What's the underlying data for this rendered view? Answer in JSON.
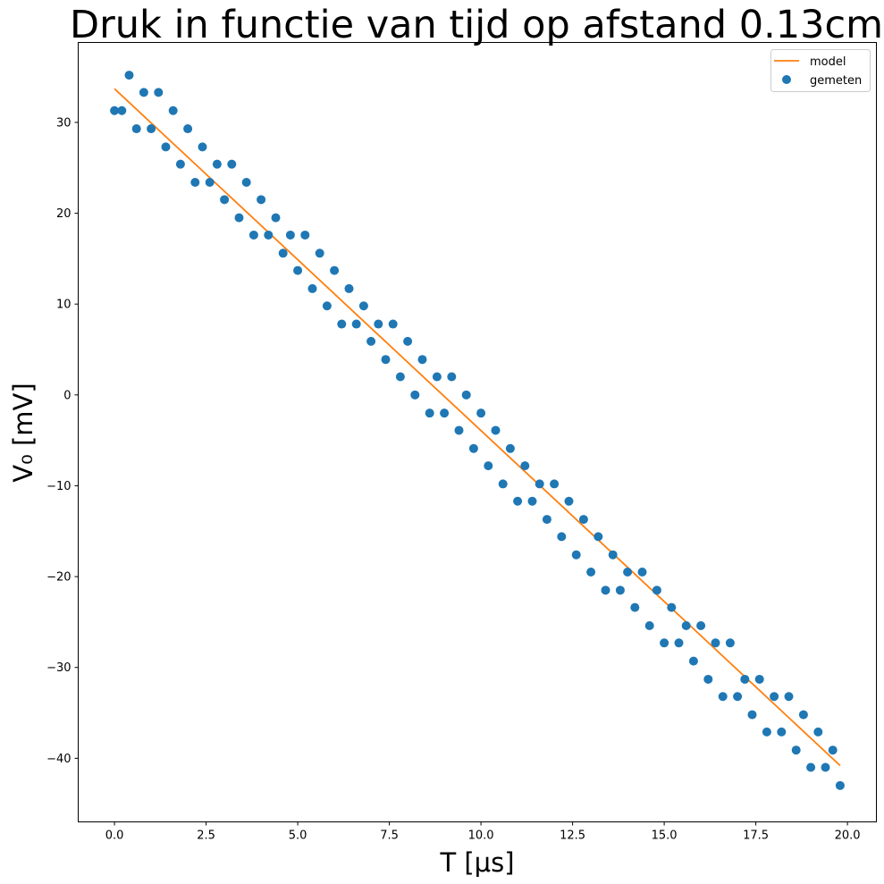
{
  "chart_data": {
    "type": "scatter",
    "title": "Druk in functie van tijd op afstand 0.13cm",
    "xlabel": "T [μs]",
    "ylabel": "V₀ [mV]",
    "xlim": [
      -0.99,
      20.79
    ],
    "ylim": [
      -47.0,
      38.8
    ],
    "xticks": [
      0.0,
      2.5,
      5.0,
      7.5,
      10.0,
      12.5,
      15.0,
      17.5,
      20.0
    ],
    "yticks": [
      -40,
      -30,
      -20,
      -10,
      0,
      10,
      20,
      30
    ],
    "xtick_labels": [
      "0.0",
      "2.5",
      "5.0",
      "7.5",
      "10.0",
      "12.5",
      "15.0",
      "17.5",
      "20.0"
    ],
    "ytick_labels": [
      "−40",
      "−30",
      "−20",
      "−10",
      "0",
      "10",
      "20",
      "30"
    ],
    "grid": false,
    "legend_position": "top-right",
    "series": [
      {
        "name": "gemeten",
        "kind": "scatter",
        "color": "#1f77b4",
        "x": [
          0.0,
          0.2,
          0.4,
          0.6,
          0.8,
          1.0,
          1.2,
          1.4,
          1.6,
          1.8,
          2.0,
          2.2,
          2.4,
          2.6,
          2.8,
          3.0,
          3.2,
          3.4,
          3.6,
          3.8,
          4.0,
          4.2,
          4.4,
          4.6,
          4.8,
          5.0,
          5.2,
          5.4,
          5.6,
          5.8,
          6.0,
          6.2,
          6.4,
          6.6,
          6.8,
          7.0,
          7.2,
          7.4,
          7.6,
          7.8,
          8.0,
          8.2,
          8.4,
          8.6,
          8.8,
          9.0,
          9.2,
          9.4,
          9.6,
          9.8,
          10.0,
          10.2,
          10.4,
          10.6,
          10.8,
          11.0,
          11.2,
          11.4,
          11.6,
          11.8,
          12.0,
          12.2,
          12.4,
          12.6,
          12.8,
          13.0,
          13.2,
          13.4,
          13.6,
          13.8,
          14.0,
          14.2,
          14.4,
          14.6,
          14.8,
          15.0,
          15.2,
          15.4,
          15.6,
          15.8,
          16.0,
          16.2,
          16.4,
          16.6,
          16.8,
          17.0,
          17.2,
          17.4,
          17.6,
          17.8,
          18.0,
          18.2,
          18.4,
          18.6,
          18.8,
          19.0,
          19.2,
          19.4,
          19.6,
          19.8
        ],
        "y": [
          31.3,
          31.3,
          35.2,
          29.3,
          33.3,
          29.3,
          33.3,
          27.3,
          31.3,
          25.4,
          29.3,
          23.4,
          27.3,
          23.4,
          25.4,
          21.5,
          25.4,
          19.5,
          23.4,
          17.6,
          21.5,
          17.6,
          19.5,
          15.6,
          17.6,
          13.7,
          17.6,
          11.7,
          15.6,
          9.8,
          13.7,
          7.8,
          11.7,
          7.8,
          9.8,
          5.9,
          7.8,
          3.9,
          7.8,
          2.0,
          5.9,
          0.0,
          3.9,
          -2.0,
          2.0,
          -2.0,
          2.0,
          -3.9,
          0.0,
          -5.9,
          -2.0,
          -7.8,
          -3.9,
          -9.8,
          -5.9,
          -11.7,
          -7.8,
          -11.7,
          -9.8,
          -13.7,
          -9.8,
          -15.6,
          -11.7,
          -17.6,
          -13.7,
          -19.5,
          -15.6,
          -21.5,
          -17.6,
          -21.5,
          -19.5,
          -23.4,
          -19.5,
          -25.4,
          -21.5,
          -27.3,
          -23.4,
          -27.3,
          -25.4,
          -29.3,
          -25.4,
          -31.3,
          -27.3,
          -33.2,
          -27.3,
          -33.2,
          -31.3,
          -35.2,
          -31.3,
          -37.1,
          -33.2,
          -37.1,
          -33.2,
          -39.1,
          -35.2,
          -41.0,
          -37.1,
          -41.0,
          -39.1,
          -43.0
        ]
      },
      {
        "name": "model",
        "kind": "line",
        "color": "#ff7f0e",
        "x": [
          0.0,
          19.8
        ],
        "y": [
          33.7,
          -40.8
        ]
      }
    ]
  }
}
